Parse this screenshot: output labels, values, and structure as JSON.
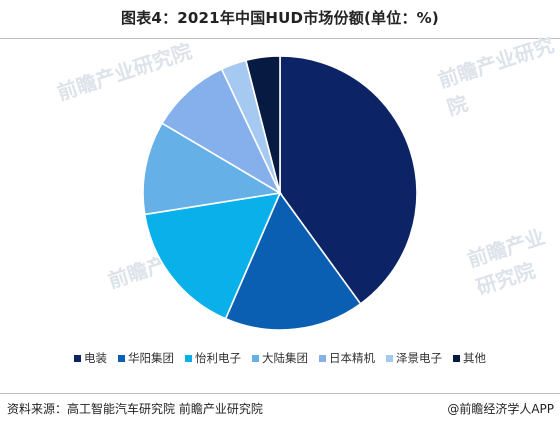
{
  "title": "图表4：2021年中国HUD市场份额(单位：%)",
  "source_text": "资料来源：高工智能汽车研究院 前瞻产业研究院",
  "brand_text": "@前瞻经济学人APP",
  "watermark_text": "前瞻产业研究院",
  "chart_data": {
    "type": "pie",
    "title": "图表4：2021年中国HUD市场份额(单位：%)",
    "unit": "%",
    "legend_position": "bottom",
    "categories": [
      "电装",
      "华阳集团",
      "怡利电子",
      "大陆集团",
      "日本精机",
      "泽景电子",
      "其他"
    ],
    "values": [
      40.0,
      16.5,
      16.0,
      11.0,
      9.5,
      3.0,
      4.0
    ],
    "colors": [
      "#0c2366",
      "#0a5fb3",
      "#0ab0ea",
      "#66b0e8",
      "#86b0ec",
      "#a6c9f1",
      "#071a42"
    ]
  }
}
